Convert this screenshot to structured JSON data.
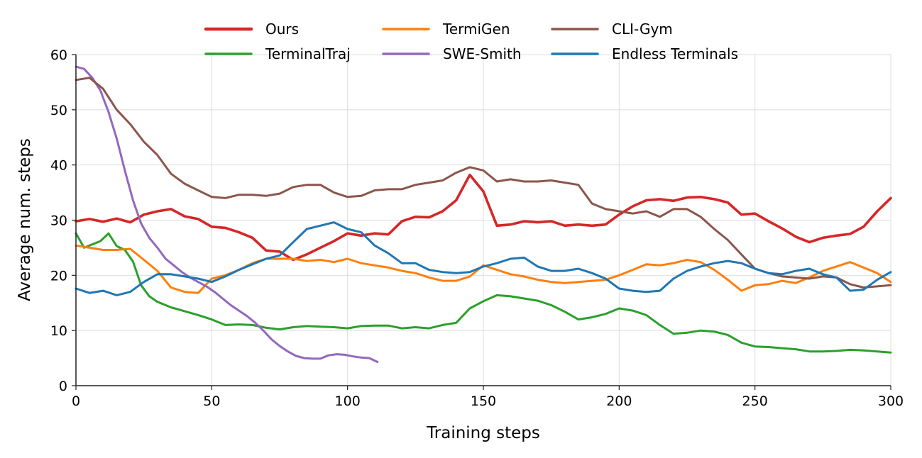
{
  "chart_data": {
    "type": "line",
    "title": "",
    "xlabel": "Training steps",
    "ylabel": "Average num. steps",
    "xlim": [
      0,
      300
    ],
    "ylim": [
      0,
      60
    ],
    "xticks": [
      "0",
      "50",
      "100",
      "150",
      "200",
      "250",
      "300"
    ],
    "yticks": [
      "0",
      "10",
      "20",
      "30",
      "40",
      "50",
      "60"
    ],
    "grid": true,
    "legend_position": "top-center",
    "series": [
      {
        "name": "Ours",
        "color": "#d62728",
        "x": [
          0,
          5,
          10,
          15,
          20,
          25,
          30,
          35,
          40,
          45,
          50,
          55,
          60,
          65,
          70,
          75,
          80,
          85,
          90,
          95,
          100,
          105,
          110,
          115,
          120,
          125,
          130,
          135,
          140,
          145,
          150,
          155,
          160,
          165,
          170,
          175,
          180,
          185,
          190,
          195,
          200,
          205,
          210,
          215,
          220,
          225,
          230,
          235,
          240,
          245,
          250,
          255,
          260,
          265,
          270,
          275,
          280,
          285,
          290,
          295,
          300
        ],
        "y": [
          29.8,
          30.2,
          29.7,
          30.3,
          29.6,
          31.0,
          31.6,
          32.0,
          30.7,
          30.2,
          28.8,
          28.6,
          27.8,
          26.8,
          24.5,
          24.3,
          22.8,
          23.8,
          25.0,
          26.2,
          27.6,
          27.2,
          27.6,
          27.4,
          29.8,
          30.6,
          30.5,
          31.6,
          33.6,
          38.2,
          35.2,
          29.0,
          29.2,
          29.8,
          29.6,
          29.8,
          29.0,
          29.2,
          29.0,
          29.2,
          31.0,
          32.5,
          33.6,
          33.8,
          33.5,
          34.1,
          34.2,
          33.8,
          33.2,
          31.0,
          31.2,
          29.8,
          28.5,
          27.0,
          26.0,
          26.8,
          27.2,
          27.5,
          28.8,
          31.6,
          34.0
        ]
      },
      {
        "name": "TerminalTraj",
        "color": "#2ca02c",
        "x": [
          0,
          3,
          6,
          9,
          12,
          15,
          18,
          21,
          24,
          27,
          30,
          35,
          40,
          45,
          50,
          55,
          60,
          65,
          70,
          75,
          80,
          85,
          90,
          95,
          100,
          105,
          110,
          115,
          120,
          125,
          130,
          135,
          140,
          145,
          150,
          155,
          160,
          165,
          170,
          175,
          180,
          185,
          190,
          195,
          200,
          205,
          210,
          215,
          220,
          225,
          230,
          235,
          240,
          245,
          250,
          255,
          260,
          265,
          270,
          275,
          280,
          285,
          290,
          295,
          300
        ],
        "y": [
          27.6,
          25.0,
          25.6,
          26.2,
          27.6,
          25.3,
          24.6,
          22.5,
          18.2,
          16.2,
          15.2,
          14.2,
          13.5,
          12.8,
          12.0,
          11.0,
          11.1,
          11.0,
          10.5,
          10.2,
          10.6,
          10.8,
          10.7,
          10.6,
          10.4,
          10.8,
          10.9,
          10.9,
          10.4,
          10.6,
          10.4,
          11.0,
          11.4,
          14.0,
          15.3,
          16.4,
          16.2,
          15.8,
          15.4,
          14.6,
          13.4,
          12.0,
          12.4,
          13.0,
          14.0,
          13.6,
          12.8,
          11.0,
          9.4,
          9.6,
          10.0,
          9.8,
          9.2,
          7.8,
          7.1,
          7.0,
          6.8,
          6.6,
          6.2,
          6.2,
          6.3,
          6.5,
          6.4,
          6.2,
          6.0
        ]
      },
      {
        "name": "TermiGen",
        "color": "#ff7f0e",
        "x": [
          0,
          5,
          10,
          15,
          20,
          25,
          30,
          35,
          40,
          45,
          50,
          55,
          60,
          65,
          70,
          75,
          80,
          85,
          90,
          95,
          100,
          105,
          110,
          115,
          120,
          125,
          130,
          135,
          140,
          145,
          150,
          155,
          160,
          165,
          170,
          175,
          180,
          185,
          190,
          195,
          200,
          205,
          210,
          215,
          220,
          225,
          230,
          235,
          240,
          245,
          250,
          255,
          260,
          265,
          270,
          275,
          280,
          285,
          290,
          295,
          300
        ],
        "y": [
          25.4,
          25.0,
          24.6,
          24.6,
          24.8,
          22.8,
          20.8,
          17.8,
          17.0,
          16.8,
          19.4,
          20.0,
          21.0,
          22.2,
          23.0,
          23.0,
          23.0,
          22.6,
          22.8,
          22.4,
          23.0,
          22.2,
          21.8,
          21.4,
          20.8,
          20.4,
          19.6,
          19.0,
          19.0,
          19.8,
          21.8,
          21.0,
          20.2,
          19.8,
          19.2,
          18.8,
          18.6,
          18.8,
          19.0,
          19.2,
          20.0,
          21.0,
          22.0,
          21.8,
          22.2,
          22.8,
          22.4,
          21.0,
          19.2,
          17.2,
          18.2,
          18.4,
          19.0,
          18.6,
          19.6,
          20.8,
          21.6,
          22.4,
          21.4,
          20.4,
          18.8
        ]
      },
      {
        "name": "SWE-Smith",
        "color": "#9467bd",
        "x": [
          0,
          3,
          6,
          9,
          12,
          15,
          18,
          21,
          24,
          27,
          30,
          33,
          36,
          39,
          42,
          45,
          48,
          51,
          54,
          57,
          60,
          63,
          66,
          69,
          72,
          75,
          78,
          81,
          84,
          87,
          90,
          93,
          96,
          99,
          102,
          105,
          108,
          111
        ],
        "y": [
          57.8,
          57.4,
          55.8,
          53.5,
          49.6,
          44.8,
          39.0,
          33.6,
          29.4,
          26.8,
          25.0,
          23.0,
          21.8,
          20.6,
          19.6,
          18.8,
          18.0,
          17.0,
          15.8,
          14.6,
          13.6,
          12.6,
          11.4,
          10.0,
          8.4,
          7.2,
          6.2,
          5.4,
          5.0,
          4.9,
          4.9,
          5.5,
          5.7,
          5.6,
          5.3,
          5.1,
          5.0,
          4.3
        ]
      },
      {
        "name": "CLI-Gym",
        "color": "#8c564b",
        "x": [
          0,
          5,
          10,
          15,
          20,
          25,
          30,
          35,
          40,
          45,
          50,
          55,
          60,
          65,
          70,
          75,
          80,
          85,
          90,
          95,
          100,
          105,
          110,
          115,
          120,
          125,
          130,
          135,
          140,
          145,
          150,
          155,
          160,
          165,
          170,
          175,
          180,
          185,
          190,
          195,
          200,
          205,
          210,
          215,
          220,
          225,
          230,
          235,
          240,
          245,
          250,
          255,
          260,
          265,
          270,
          275,
          280,
          285,
          290,
          295,
          300
        ],
        "y": [
          55.4,
          55.8,
          53.8,
          50.0,
          47.4,
          44.2,
          41.8,
          38.4,
          36.6,
          35.4,
          34.2,
          34.0,
          34.6,
          34.6,
          34.4,
          34.8,
          36.0,
          36.4,
          36.4,
          35.0,
          34.2,
          34.4,
          35.4,
          35.6,
          35.6,
          36.4,
          36.8,
          37.2,
          38.6,
          39.6,
          39.0,
          37.0,
          37.4,
          37.0,
          37.0,
          37.2,
          36.8,
          36.4,
          33.0,
          32.0,
          31.6,
          31.2,
          31.6,
          30.6,
          32.0,
          32.0,
          30.6,
          28.4,
          26.4,
          23.8,
          21.2,
          20.4,
          19.8,
          19.6,
          19.4,
          19.8,
          19.6,
          18.4,
          17.8,
          18.0,
          18.2
        ]
      },
      {
        "name": "Endless Terminals",
        "color": "#1f77b4",
        "x": [
          0,
          5,
          10,
          15,
          20,
          25,
          30,
          35,
          40,
          45,
          50,
          55,
          60,
          65,
          70,
          75,
          80,
          85,
          90,
          95,
          100,
          105,
          110,
          115,
          120,
          125,
          130,
          135,
          140,
          145,
          150,
          155,
          160,
          165,
          170,
          175,
          180,
          185,
          190,
          195,
          200,
          205,
          210,
          215,
          220,
          225,
          230,
          235,
          240,
          245,
          250,
          255,
          260,
          265,
          270,
          275,
          280,
          285,
          290,
          295,
          300
        ],
        "y": [
          17.6,
          16.8,
          17.2,
          16.4,
          17.0,
          18.8,
          20.2,
          20.2,
          19.8,
          19.4,
          18.8,
          19.8,
          21.0,
          22.0,
          23.0,
          23.6,
          26.0,
          28.4,
          29.0,
          29.6,
          28.4,
          27.8,
          25.4,
          24.0,
          22.2,
          22.2,
          21.0,
          20.6,
          20.4,
          20.6,
          21.6,
          22.2,
          23.0,
          23.2,
          21.6,
          20.8,
          20.8,
          21.2,
          20.4,
          19.4,
          17.6,
          17.2,
          17.0,
          17.2,
          19.4,
          20.8,
          21.6,
          22.2,
          22.6,
          22.2,
          21.2,
          20.4,
          20.2,
          20.8,
          21.2,
          20.2,
          19.6,
          17.2,
          17.4,
          19.2,
          20.6
        ]
      }
    ]
  }
}
